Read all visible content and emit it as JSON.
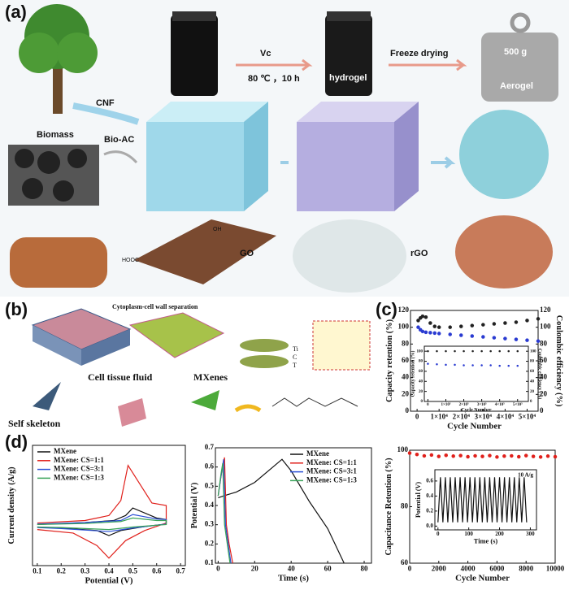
{
  "panel_a": {
    "label": "(a)",
    "cnf": "CNF",
    "biomass": "Biomass",
    "bio_ac": "Bio-AC",
    "vc": "Vc",
    "condition": "80 ℃ ，10 h",
    "hydrogel": "hydrogel",
    "freeze": "Freeze drying",
    "weight": "500 g",
    "aerogel": "Aerogel",
    "go": "GO",
    "rgo": "rGO",
    "hooc": "HOOC",
    "oh": "OH"
  },
  "panel_b": {
    "label": "(b)",
    "separation": "Cytoplasm-cell wall separation",
    "ti": "Ti",
    "c": "C",
    "t": "T",
    "skeleton": "Self skeleton",
    "fluid": "Cell tissue fluid",
    "mxenes": "MXenes"
  },
  "panel_c": {
    "label": "(c)"
  },
  "panel_d": {
    "label": "(d)"
  },
  "chart_data": [
    {
      "type": "scatter",
      "xlabel": "Cycle Number",
      "ylabel": "Capacity retention (%)",
      "y2label": "Coulombic efficiency (%)",
      "xlim": [
        -3000,
        55000
      ],
      "xticks": [
        0,
        {
          "value": 10000,
          "label": "1×10⁴"
        },
        {
          "value": 20000,
          "label": "2×10⁴"
        },
        {
          "value": 30000,
          "label": "3×10⁴"
        },
        {
          "value": 40000,
          "label": "4×10⁴"
        },
        {
          "value": 50000,
          "label": "5×10⁴"
        }
      ],
      "ylim": [
        0,
        120
      ],
      "yticks": [
        0,
        20,
        40,
        60,
        80,
        100,
        120
      ],
      "y2lim": [
        0,
        120
      ],
      "y2ticks": [
        0,
        20,
        40,
        60,
        80,
        100,
        120
      ],
      "series": [
        {
          "color": "#2a3bd1",
          "x": [
            500,
            1500,
            2500,
            4000,
            6000,
            8000,
            10000,
            15000,
            20000,
            25000,
            30000,
            35000,
            40000,
            45000,
            50000,
            55000
          ],
          "values": [
            100,
            97,
            95,
            94,
            93.5,
            93,
            92.5,
            91.5,
            90.5,
            89.5,
            88.5,
            87.5,
            86.5,
            85.5,
            84.5,
            83.5
          ]
        },
        {
          "color": "#222222",
          "axis": "y2",
          "x": [
            500,
            1500,
            2500,
            4000,
            6000,
            8000,
            10000,
            15000,
            20000,
            25000,
            30000,
            35000,
            40000,
            45000,
            50000,
            55000
          ],
          "values": [
            108,
            111,
            113,
            112,
            105,
            101,
            100,
            100,
            101,
            102,
            103,
            104,
            105,
            106,
            108,
            110
          ]
        }
      ],
      "inset": {
        "type": "scatter",
        "xlabel": "Cycle Number",
        "ylabel": "Capacity retention (%)",
        "y2label": "Coulombic efficiency (%)",
        "xlim": [
          -20000,
          560000
        ],
        "xticks": [
          0,
          {
            "value": 100000,
            "label": "1×10⁵"
          },
          {
            "value": 200000,
            "label": "2×10⁵"
          },
          {
            "value": 300000,
            "label": "3×10⁵"
          },
          {
            "value": 400000,
            "label": "4×10⁵"
          },
          {
            "value": 500000,
            "label": "5×10⁵"
          }
        ],
        "ylim": [
          0,
          110
        ],
        "yticks": [
          0,
          20,
          40,
          60,
          80,
          100
        ],
        "y2lim": [
          0,
          110
        ],
        "y2ticks": [
          0,
          20,
          40,
          60,
          80,
          100
        ],
        "series": [
          {
            "color": "#2a3bd1",
            "x": [
              0,
              50000,
              100000,
              150000,
              200000,
              250000,
              300000,
              350000,
              400000,
              450000,
              500000
            ],
            "values": [
              75,
              74,
              73,
              73,
              72,
              72,
              72,
              72,
              71,
              71,
              71
            ]
          },
          {
            "color": "#222222",
            "axis": "y2",
            "x": [
              0,
              50000,
              100000,
              150000,
              200000,
              250000,
              300000,
              350000,
              400000,
              450000,
              500000
            ],
            "values": [
              100,
              100,
              100,
              100,
              100,
              100,
              100,
              100,
              100,
              100,
              100
            ]
          }
        ]
      }
    },
    {
      "type": "line",
      "xlabel": "Potential (V)",
      "ylabel": "Current density (A/g)",
      "xlim": [
        0.08,
        0.72
      ],
      "xticks": [
        0.1,
        0.2,
        0.3,
        0.4,
        0.5,
        0.6,
        0.7
      ],
      "ylim": [
        -8,
        16
      ],
      "legend": "upper left",
      "series": [
        {
          "name": "MXene",
          "color": "#111111",
          "x": [
            0.1,
            0.3,
            0.42,
            0.47,
            0.5,
            0.6,
            0.64,
            0.64,
            0.55,
            0.45,
            0.4,
            0.35,
            0.2,
            0.1
          ],
          "values": [
            0.2,
            0.6,
            1,
            2,
            3.5,
            1.5,
            1.2,
            0.3,
            -0.2,
            -1,
            -2,
            -1,
            -0.5,
            -0.3
          ]
        },
        {
          "name": "MXene: CS=1:1",
          "color": "#e0201b",
          "x": [
            0.1,
            0.3,
            0.4,
            0.45,
            0.48,
            0.52,
            0.58,
            0.64,
            0.64,
            0.55,
            0.47,
            0.4,
            0.35,
            0.25,
            0.1
          ],
          "values": [
            0.5,
            1,
            2,
            5,
            12,
            9,
            4.5,
            4,
            0.5,
            -1,
            -3,
            -6.5,
            -4,
            -1.5,
            -0.8
          ]
        },
        {
          "name": "MXene: CS=3:1",
          "color": "#2a4fd6",
          "x": [
            0.1,
            0.3,
            0.45,
            0.5,
            0.6,
            0.64,
            0.64,
            0.5,
            0.4,
            0.2,
            0.1
          ],
          "values": [
            0.3,
            0.6,
            1,
            2.2,
            1.3,
            1.2,
            0.3,
            -0.5,
            -1.2,
            -0.6,
            -0.4
          ]
        },
        {
          "name": "MXene: CS=1:3",
          "color": "#3aa35a",
          "x": [
            0.1,
            0.3,
            0.45,
            0.5,
            0.6,
            0.64,
            0.64,
            0.5,
            0.4,
            0.2,
            0.1
          ],
          "values": [
            0.2,
            0.4,
            0.8,
            1.5,
            1,
            1,
            0.2,
            -0.3,
            -0.8,
            -0.4,
            -0.3
          ]
        }
      ]
    },
    {
      "type": "line",
      "xlabel": "Time (s)",
      "ylabel": "Potential (V)",
      "xlim": [
        -1.5,
        84
      ],
      "xticks": [
        0,
        20,
        40,
        60,
        80
      ],
      "ylim": [
        0.1,
        0.7
      ],
      "yticks": [
        0.1,
        0.2,
        0.3,
        0.4,
        0.5,
        0.6,
        0.7
      ],
      "legend": "upper right",
      "series": [
        {
          "name": "MXene",
          "color": "#111111",
          "x": [
            0,
            3,
            10,
            20,
            30,
            35,
            40,
            50,
            60,
            69
          ],
          "values": [
            0.44,
            0.45,
            0.47,
            0.52,
            0.6,
            0.64,
            0.58,
            0.42,
            0.28,
            0.1
          ]
        },
        {
          "name": "MXene: CS=1:1",
          "color": "#e0201b",
          "x": [
            0,
            2,
            3.5,
            4.5,
            6,
            8
          ],
          "values": [
            0.45,
            0.58,
            0.65,
            0.3,
            0.2,
            0.1
          ]
        },
        {
          "name": "MXene: CS=3:1",
          "color": "#2a4fd6",
          "x": [
            0,
            2,
            3,
            4,
            5.5,
            7
          ],
          "values": [
            0.45,
            0.58,
            0.64,
            0.3,
            0.2,
            0.1
          ]
        },
        {
          "name": "MXene: CS=1:3",
          "color": "#3aa35a",
          "x": [
            0,
            1.5,
            2.5,
            3.5,
            5,
            6.5
          ],
          "values": [
            0.45,
            0.56,
            0.62,
            0.3,
            0.2,
            0.1
          ]
        }
      ]
    },
    {
      "type": "scatter",
      "xlabel": "Cycle Number",
      "ylabel": "Capacitance Retention (%)",
      "xlim": [
        0,
        10000
      ],
      "xticks": [
        0,
        2000,
        4000,
        6000,
        8000,
        10000
      ],
      "ylim": [
        60,
        100
      ],
      "yticks": [
        60,
        80,
        100
      ],
      "series": [
        {
          "color": "#e0201b",
          "x": [
            0,
            500,
            1000,
            1500,
            2000,
            2500,
            3000,
            3500,
            4000,
            4500,
            5000,
            5500,
            6000,
            6500,
            7000,
            7500,
            8000,
            8500,
            9000,
            9500,
            10000
          ],
          "values": [
            99,
            98.5,
            98,
            98.3,
            97.8,
            98.2,
            97.9,
            98.1,
            97.7,
            98,
            97.8,
            98.1,
            97.6,
            97.9,
            98,
            97.7,
            98.1,
            97.8,
            97.6,
            97.9,
            97.7
          ]
        }
      ],
      "inset": {
        "type": "line",
        "xlabel": "Time (s)",
        "ylabel": "Potential (V)",
        "annotation": "10 A/g",
        "xlim": [
          -10,
          320
        ],
        "xticks": [
          0,
          100,
          200,
          300
        ],
        "ylim": [
          -0.05,
          0.75
        ],
        "yticks": [
          {
            "value": 0,
            "label": "0.0"
          },
          0.2,
          0.4,
          0.6
        ],
        "series": [
          {
            "color": "#111111",
            "x": [
              0,
              8,
              16,
              24,
              32,
              40,
              48,
              56,
              64,
              72,
              80,
              88,
              96,
              104,
              112,
              120,
              128,
              136,
              144,
              152,
              160,
              168,
              176,
              184,
              192,
              200,
              208,
              216,
              224,
              232,
              240,
              248,
              256,
              264,
              272,
              280,
              288
            ],
            "values": [
              0.05,
              0.65,
              0.05,
              0.65,
              0.05,
              0.65,
              0.05,
              0.65,
              0.05,
              0.65,
              0.05,
              0.65,
              0.05,
              0.65,
              0.05,
              0.65,
              0.05,
              0.65,
              0.05,
              0.65,
              0.05,
              0.65,
              0.05,
              0.65,
              0.05,
              0.65,
              0.05,
              0.65,
              0.05,
              0.65,
              0.05,
              0.65,
              0.05,
              0.65,
              0.05,
              0.65,
              0.05
            ]
          }
        ]
      }
    }
  ]
}
